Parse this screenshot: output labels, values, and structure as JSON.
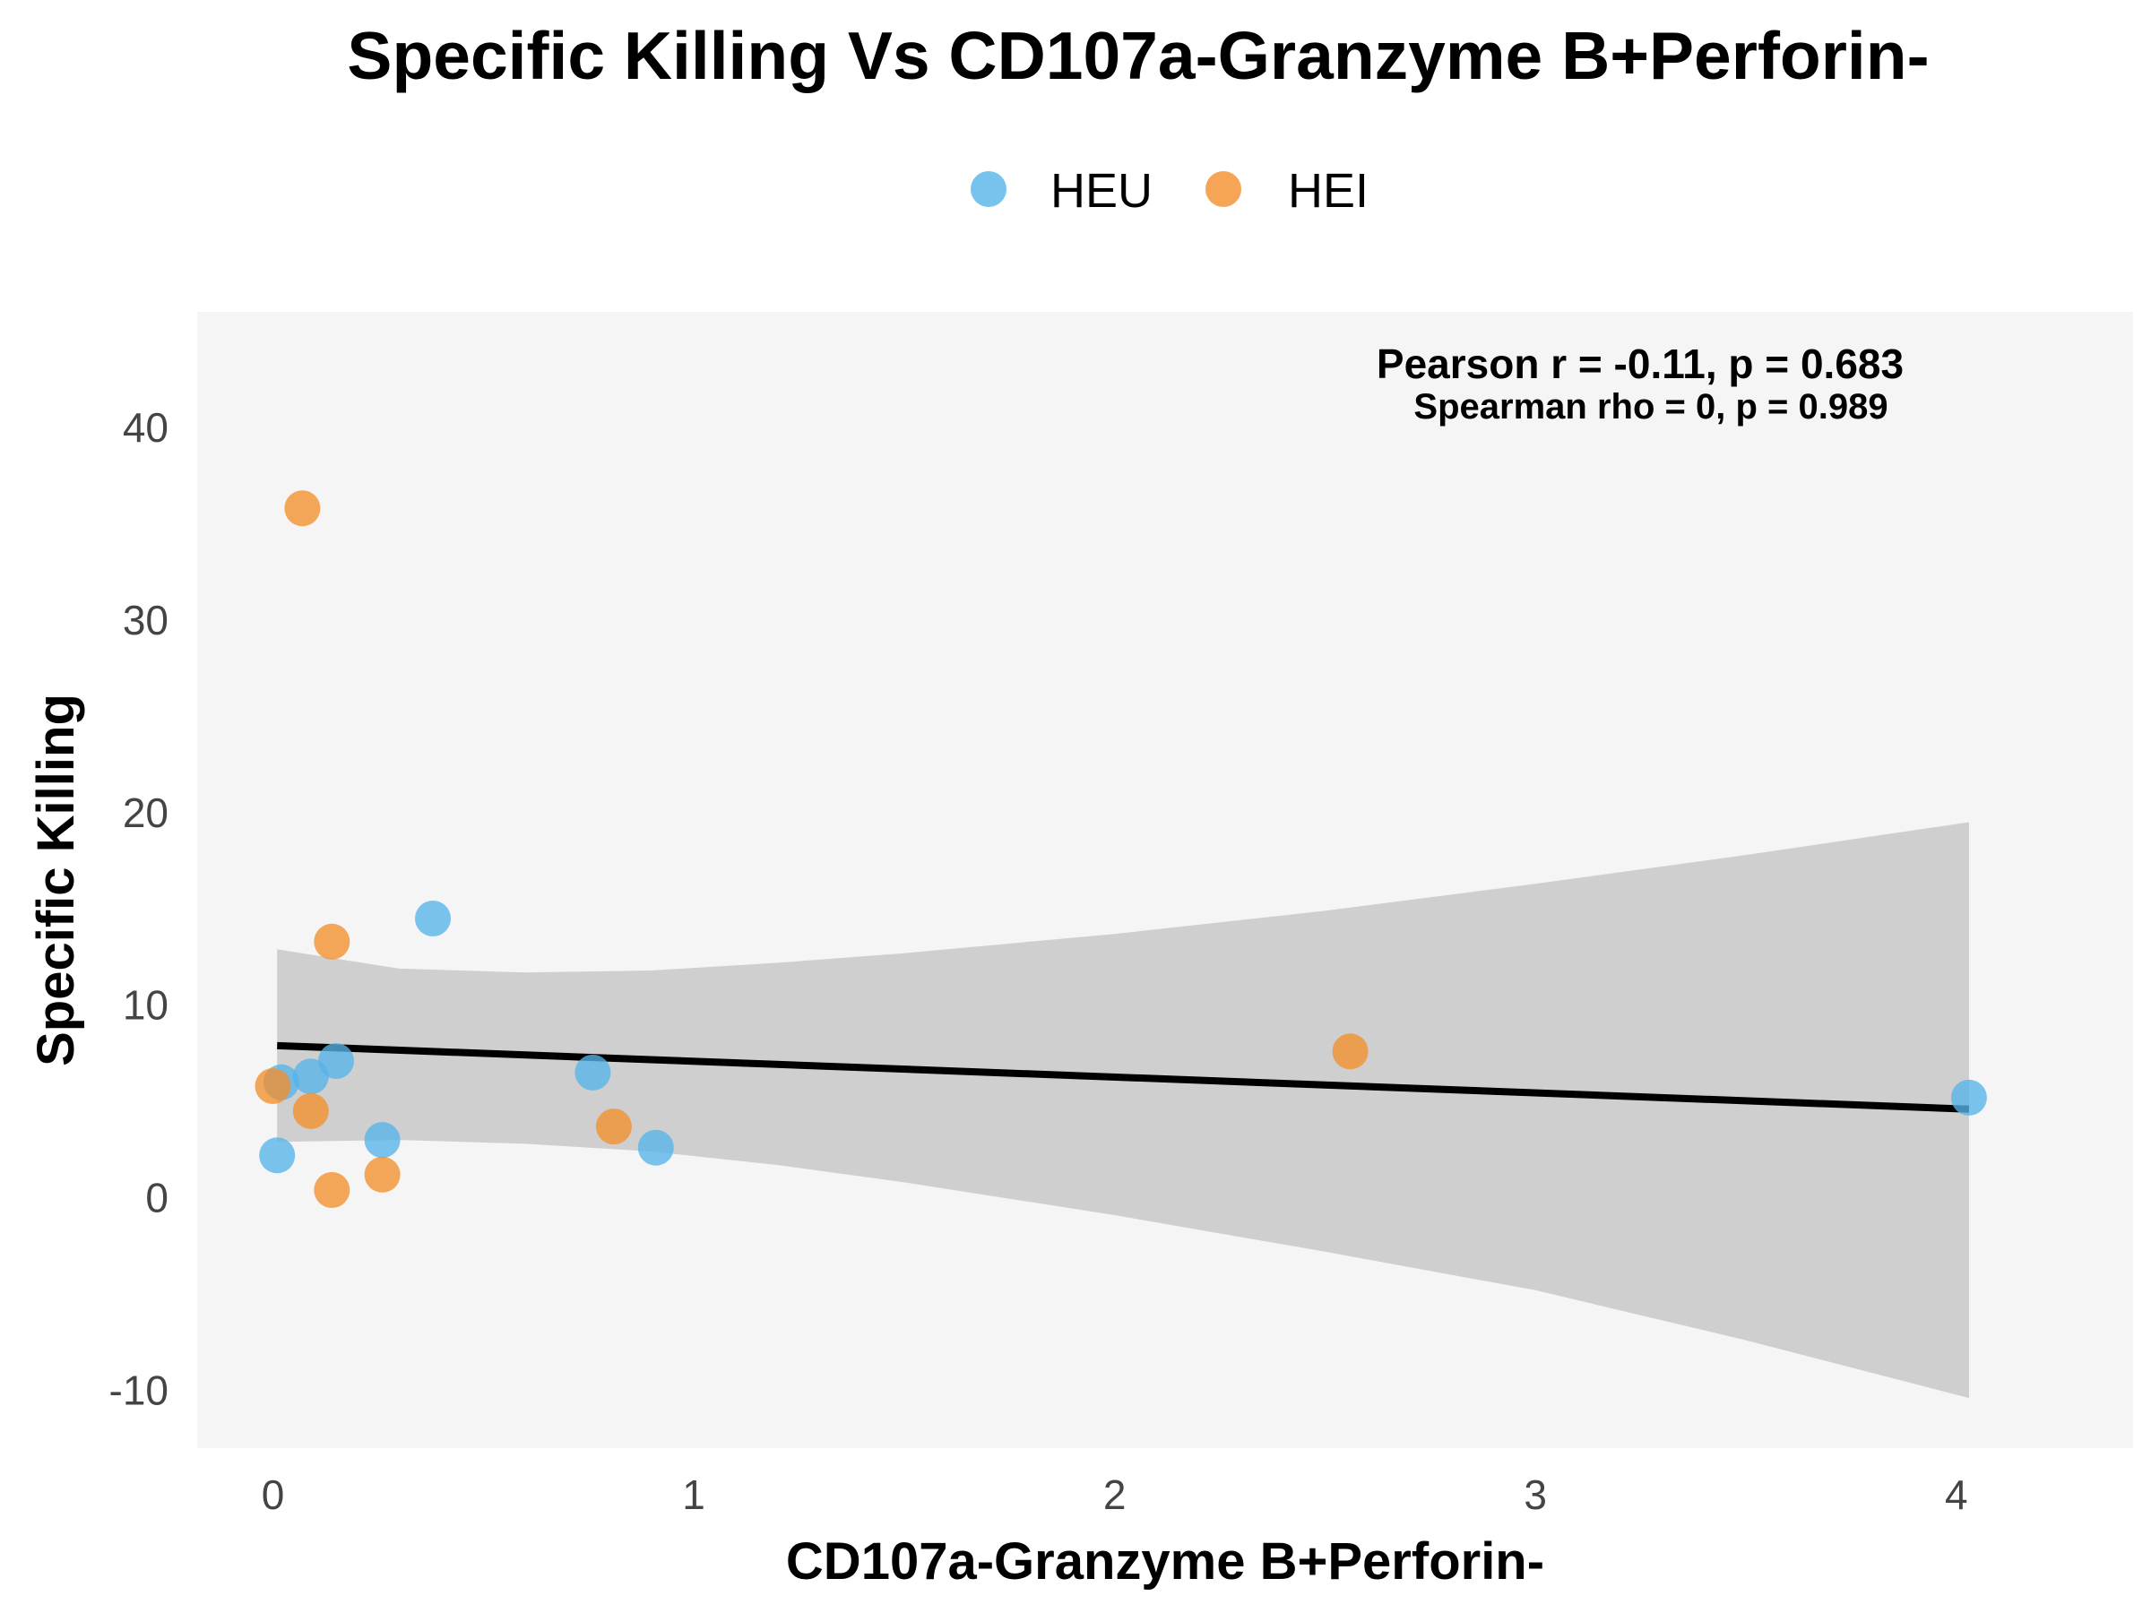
{
  "chart_data": {
    "type": "scatter",
    "title": "Specific Killing Vs CD107a-Granzyme B+Perforin-",
    "xlabel": "CD107a-Granzyme B+Perforin-",
    "ylabel": "Specific Killing",
    "xlim": [
      -0.18,
      4.42
    ],
    "ylim": [
      -13,
      46
    ],
    "xticks": [
      0,
      1,
      2,
      3,
      4
    ],
    "yticks": [
      -10,
      0,
      10,
      20,
      30,
      40
    ],
    "xtick_labels": [
      "0",
      "1",
      "2",
      "3",
      "4"
    ],
    "ytick_labels": [
      "-10",
      "0",
      "10",
      "20",
      "30",
      "40"
    ],
    "grid": false,
    "panel_background": "#f5f5f5",
    "legend_position": "top",
    "series": [
      {
        "name": "HEU",
        "color": "#56b4e9",
        "points": [
          {
            "x": 0.01,
            "y": 2.2
          },
          {
            "x": 0.02,
            "y": 6.0
          },
          {
            "x": 0.09,
            "y": 6.3
          },
          {
            "x": 0.15,
            "y": 7.1
          },
          {
            "x": 0.26,
            "y": 3.0
          },
          {
            "x": 0.38,
            "y": 14.5
          },
          {
            "x": 0.76,
            "y": 6.5
          },
          {
            "x": 0.91,
            "y": 2.6
          },
          {
            "x": 4.03,
            "y": 5.2
          }
        ]
      },
      {
        "name": "HEI",
        "color": "#f28e2b",
        "points": [
          {
            "x": 0.0,
            "y": 5.8
          },
          {
            "x": 0.07,
            "y": 35.8
          },
          {
            "x": 0.09,
            "y": 4.5
          },
          {
            "x": 0.14,
            "y": 13.3
          },
          {
            "x": 0.14,
            "y": 0.4
          },
          {
            "x": 0.26,
            "y": 1.2
          },
          {
            "x": 0.81,
            "y": 3.7
          },
          {
            "x": 2.56,
            "y": 7.6
          }
        ]
      }
    ],
    "regression": {
      "line": [
        {
          "x": 0.01,
          "y": 7.9
        },
        {
          "x": 4.03,
          "y": 4.6
        }
      ],
      "color": "#000000",
      "ci_band": [
        {
          "x": 0.01,
          "lower": 2.9,
          "upper": 12.9
        },
        {
          "x": 0.3,
          "lower": 3.0,
          "upper": 11.9
        },
        {
          "x": 0.6,
          "lower": 2.8,
          "upper": 11.7
        },
        {
          "x": 0.9,
          "lower": 2.4,
          "upper": 11.8
        },
        {
          "x": 1.2,
          "lower": 1.7,
          "upper": 12.2
        },
        {
          "x": 1.5,
          "lower": 0.8,
          "upper": 12.7
        },
        {
          "x": 2.0,
          "lower": -0.9,
          "upper": 13.7
        },
        {
          "x": 2.5,
          "lower": -2.8,
          "upper": 14.9
        },
        {
          "x": 3.0,
          "lower": -4.8,
          "upper": 16.3
        },
        {
          "x": 3.5,
          "lower": -7.4,
          "upper": 17.8
        },
        {
          "x": 4.03,
          "lower": -10.4,
          "upper": 19.5
        }
      ],
      "ci_color": "#cfcfcf"
    },
    "annotations": {
      "pearson": "Pearson r = -0.11, p = 0.683",
      "spearman": "Spearman rho = 0, p = 0.989"
    }
  }
}
